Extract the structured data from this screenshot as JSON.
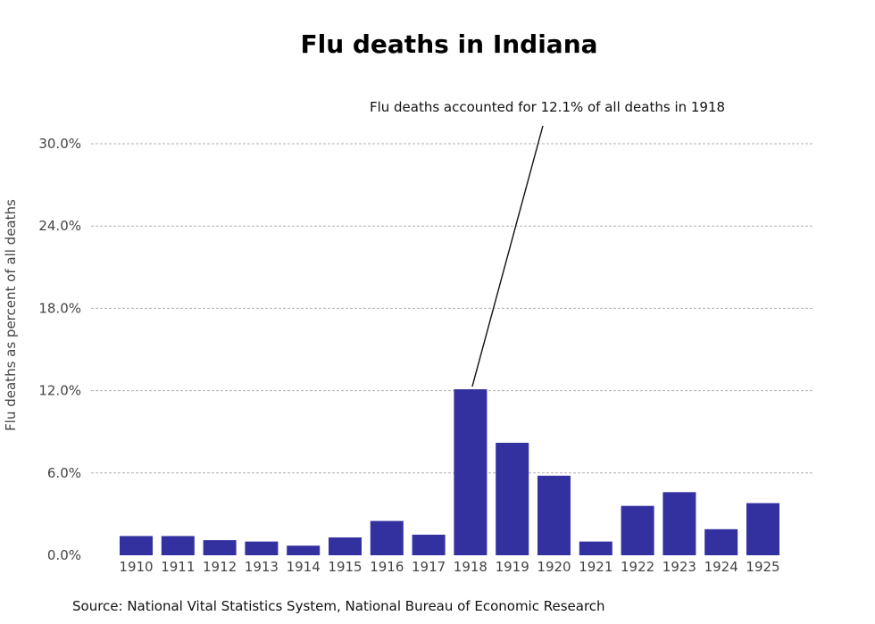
{
  "chart_data": {
    "type": "bar",
    "title": "Flu deaths in Indiana",
    "ylabel": "Flu deaths as percent of all deaths",
    "xlabel": "",
    "categories": [
      "1910",
      "1911",
      "1912",
      "1913",
      "1914",
      "1915",
      "1916",
      "1917",
      "1918",
      "1919",
      "1920",
      "1921",
      "1922",
      "1923",
      "1924",
      "1925"
    ],
    "values": [
      1.4,
      1.4,
      1.1,
      1.0,
      0.7,
      1.3,
      2.5,
      1.5,
      12.1,
      8.2,
      5.8,
      1.0,
      3.6,
      4.6,
      1.9,
      3.8
    ],
    "ylim": [
      0,
      30
    ],
    "yticks": [
      0,
      6,
      12,
      18,
      24,
      30
    ],
    "ytick_labels": [
      "0.0%",
      "6.0%",
      "12.0%",
      "18.0%",
      "24.0%",
      "30.0%"
    ],
    "grid": true,
    "bar_color": "#3330a0",
    "annotation": {
      "text": "Flu deaths accounted for 12.1% of all deaths in 1918",
      "category": "1918",
      "value": 12.1
    },
    "source": "Source: National Vital Statistics System, National Bureau of Economic Research"
  }
}
